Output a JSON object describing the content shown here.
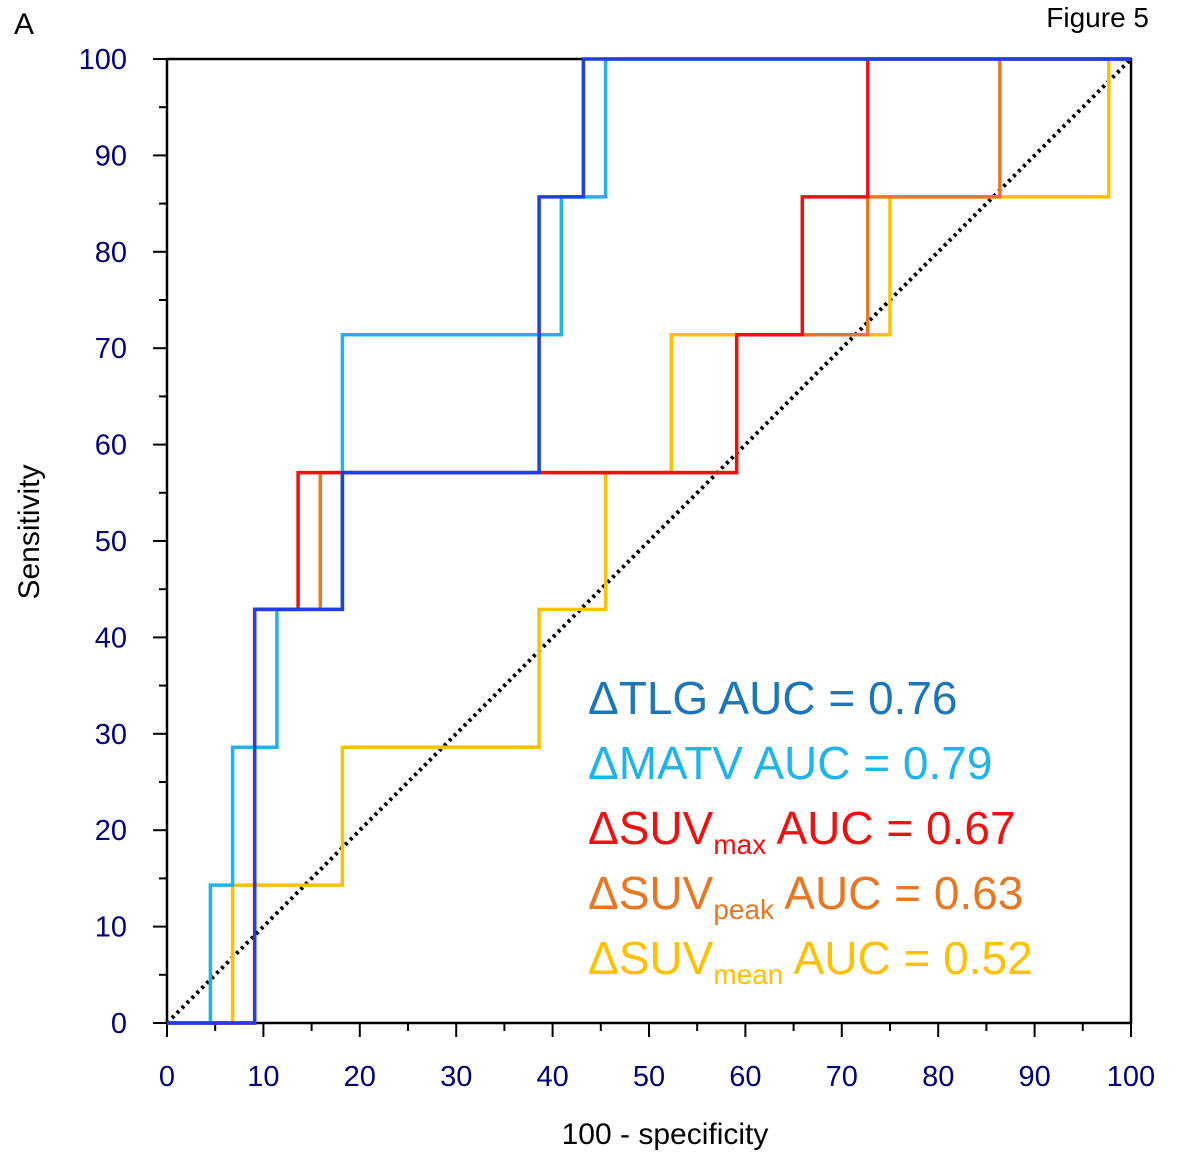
{
  "panel_letter": "A",
  "figure_label": "Figure 5",
  "chart_data": {
    "type": "line",
    "title": "",
    "xlabel": "100 - specificity",
    "ylabel": "Sensitivity",
    "xlim": [
      0,
      100
    ],
    "ylim": [
      0,
      100
    ],
    "x_ticks": [
      "0",
      "10",
      "20",
      "30",
      "40",
      "50",
      "60",
      "70",
      "80",
      "90",
      "100"
    ],
    "y_ticks": [
      "0",
      "10",
      "20",
      "30",
      "40",
      "50",
      "60",
      "70",
      "80",
      "90",
      "100"
    ],
    "grid": false,
    "legend_position": "bottom-right",
    "reference_line": {
      "from": [
        0,
        0
      ],
      "to": [
        100,
        100
      ],
      "style": "dotted",
      "color": "#000000"
    },
    "series": [
      {
        "name": "ΔSUVmean",
        "color": "#FFC000",
        "legend_prefix": "ΔSUV",
        "legend_sub": "mean",
        "legend_suffix": " AUC = 0.52",
        "auc": 0.52,
        "x": [
          0,
          6.8,
          6.8,
          18.2,
          18.2,
          38.6,
          38.6,
          45.5,
          45.5,
          52.3,
          52.3,
          75,
          75,
          97.7,
          97.7,
          100
        ],
        "y": [
          0,
          0,
          14.3,
          14.3,
          28.6,
          28.6,
          42.9,
          42.9,
          57.1,
          57.1,
          71.4,
          71.4,
          85.7,
          85.7,
          100,
          100
        ]
      },
      {
        "name": "ΔSUVpeak",
        "color": "#E87722",
        "legend_prefix": "ΔSUV",
        "legend_sub": "peak",
        "legend_suffix": " AUC = 0.63",
        "auc": 0.63,
        "x": [
          0,
          9.1,
          9.1,
          15.9,
          15.9,
          59.1,
          59.1,
          72.7,
          72.7,
          86.4,
          86.4,
          100
        ],
        "y": [
          0,
          0,
          42.9,
          42.9,
          57.1,
          57.1,
          71.4,
          71.4,
          85.7,
          85.7,
          100,
          100
        ]
      },
      {
        "name": "ΔSUVmax",
        "color": "#EE1111",
        "legend_prefix": "ΔSUV",
        "legend_sub": "max",
        "legend_suffix": " AUC = 0.67",
        "auc": 0.67,
        "x": [
          0,
          9.1,
          9.1,
          13.6,
          13.6,
          59.1,
          59.1,
          65.9,
          65.9,
          72.7,
          72.7,
          100
        ],
        "y": [
          0,
          0,
          42.9,
          42.9,
          57.1,
          57.1,
          71.4,
          71.4,
          85.7,
          85.7,
          100,
          100
        ]
      },
      {
        "name": "ΔMATV",
        "color": "#1EB4EB",
        "legend_prefix": "ΔMATV AUC = 0.79",
        "legend_sub": "",
        "legend_suffix": "",
        "auc": 0.79,
        "x": [
          0,
          4.5,
          4.5,
          6.8,
          6.8,
          11.4,
          11.4,
          18.2,
          18.2,
          40.9,
          40.9,
          45.5,
          45.5,
          100
        ],
        "y": [
          0,
          0,
          14.3,
          14.3,
          28.6,
          28.6,
          42.9,
          42.9,
          71.4,
          71.4,
          85.7,
          85.7,
          100,
          100
        ]
      },
      {
        "name": "ΔTLG",
        "color": "#1F3FE0",
        "legend_color": "#1B75BB",
        "legend_prefix": "ΔTLG AUC = 0.76",
        "legend_sub": "",
        "legend_suffix": "",
        "auc": 0.76,
        "x": [
          0,
          9.1,
          9.1,
          18.2,
          18.2,
          38.6,
          38.6,
          43.2,
          43.2,
          100
        ],
        "y": [
          0,
          0,
          42.9,
          42.9,
          57.1,
          57.1,
          85.7,
          85.7,
          100,
          100
        ]
      }
    ],
    "legend_order": [
      "ΔTLG",
      "ΔMATV",
      "ΔSUVmax",
      "ΔSUVpeak",
      "ΔSUVmean"
    ],
    "colors": {
      "axis": "#000000",
      "tick_label": "#000080"
    }
  }
}
